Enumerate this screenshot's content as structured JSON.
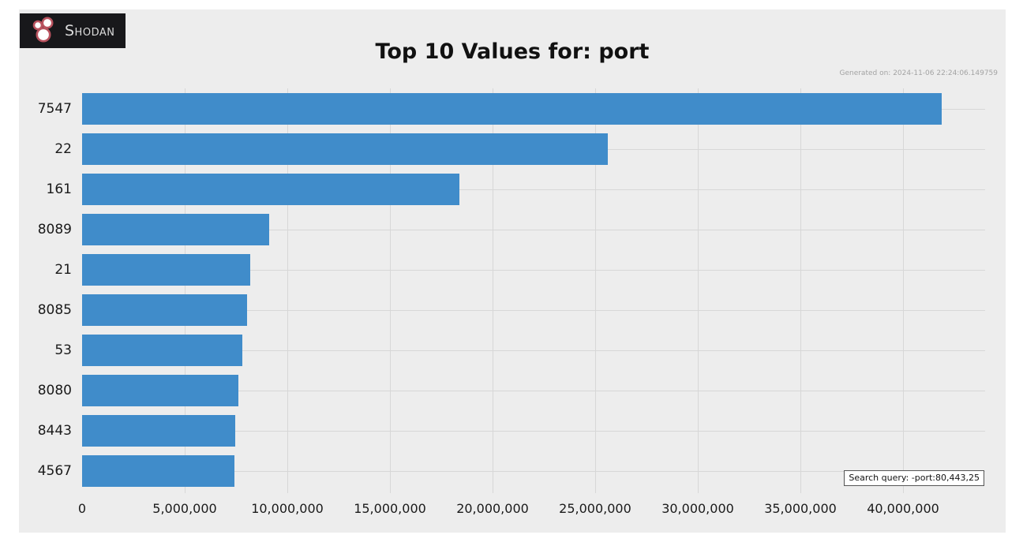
{
  "page": {
    "background": "#ffffff",
    "figure_bg": "#ededed"
  },
  "logo": {
    "text": "Shodan",
    "bg": "#18181b",
    "circle_fill": "#ffffff",
    "circle_stroke": "#b9535f"
  },
  "header": {
    "generated": "Generated on: 2024-11-06 22:24:06.149759"
  },
  "search_query_label": "Search query: -port:80,443,25",
  "chart_data": {
    "type": "bar",
    "orientation": "horizontal",
    "title": "Top 10 Values for: port",
    "categories": [
      "7547",
      "22",
      "161",
      "8089",
      "21",
      "8085",
      "53",
      "8080",
      "8443",
      "4567"
    ],
    "values": [
      41900000,
      25600000,
      18400000,
      9100000,
      8200000,
      8050000,
      7800000,
      7600000,
      7450000,
      7430000
    ],
    "xlabel": "",
    "ylabel": "",
    "xlim": [
      0,
      44000000
    ],
    "xticks": [
      0,
      5000000,
      10000000,
      15000000,
      20000000,
      25000000,
      30000000,
      35000000,
      40000000
    ],
    "grid": true,
    "legend": false,
    "bar_color": "#408cca",
    "grid_color": "#d7d7d7"
  }
}
